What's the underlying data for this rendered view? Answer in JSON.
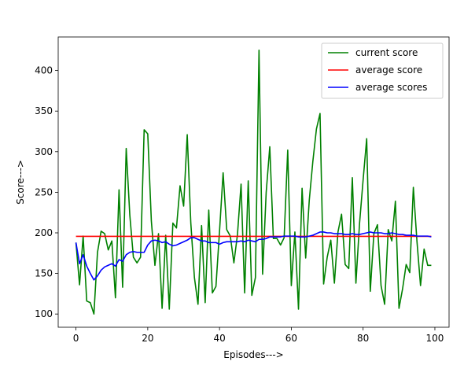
{
  "chart_data": {
    "type": "line",
    "title": "",
    "xlabel": "Episodes--->",
    "ylabel": "Score--->",
    "xlim": [
      -4.95,
      103.95
    ],
    "ylim": [
      83.7,
      441.3
    ],
    "xticks": [
      0,
      20,
      40,
      60,
      80,
      100
    ],
    "yticks": [
      100,
      150,
      200,
      250,
      300,
      350,
      400
    ],
    "grid": false,
    "legend_position": "top-right",
    "series": [
      {
        "name": "current score",
        "color": "#008000",
        "x": [
          0,
          1,
          2,
          3,
          4,
          5,
          6,
          7,
          8,
          9,
          10,
          11,
          12,
          13,
          14,
          15,
          16,
          17,
          18,
          19,
          20,
          21,
          22,
          23,
          24,
          25,
          26,
          27,
          28,
          29,
          30,
          31,
          32,
          33,
          34,
          35,
          36,
          37,
          38,
          39,
          40,
          41,
          42,
          43,
          44,
          45,
          46,
          47,
          48,
          49,
          50,
          51,
          52,
          53,
          54,
          55,
          56,
          57,
          58,
          59,
          60,
          61,
          62,
          63,
          64,
          65,
          66,
          67,
          68,
          69,
          70,
          71,
          72,
          73,
          74,
          75,
          76,
          77,
          78,
          79,
          80,
          81,
          82,
          83,
          84,
          85,
          86,
          87,
          88,
          89,
          90,
          91,
          92,
          93,
          94,
          95,
          96,
          97,
          98,
          99
        ],
        "values": [
          188,
          136,
          196,
          116,
          114,
          100,
          176,
          202,
          199,
          179,
          190,
          120,
          253,
          133,
          304,
          222,
          170,
          163,
          170,
          327,
          322,
          215,
          160,
          199,
          107,
          197,
          106,
          212,
          206,
          258,
          233,
          321,
          212,
          145,
          112,
          209,
          114,
          228,
          126,
          134,
          202,
          274,
          204,
          196,
          163,
          198,
          260,
          126,
          264,
          123,
          145,
          425,
          149,
          250,
          306,
          193,
          193,
          185,
          194,
          302,
          135,
          201,
          106,
          255,
          169,
          240,
          288,
          328,
          347,
          137,
          170,
          191,
          138,
          201,
          223,
          161,
          156,
          268,
          138,
          211,
          265,
          316,
          128,
          199,
          210,
          135,
          112,
          204,
          190,
          239,
          107,
          131,
          161,
          151,
          256,
          190,
          135,
          180,
          160,
          160
        ]
      },
      {
        "name": "average score",
        "color": "#ff0000",
        "x": [
          0,
          99
        ],
        "values": [
          195.7,
          195.7
        ]
      },
      {
        "name": "average scores",
        "color": "#0000ff",
        "x": [
          0,
          1,
          2,
          3,
          4,
          5,
          6,
          7,
          8,
          9,
          10,
          11,
          12,
          13,
          14,
          15,
          16,
          17,
          18,
          19,
          20,
          21,
          22,
          23,
          24,
          25,
          26,
          27,
          28,
          29,
          30,
          31,
          32,
          33,
          34,
          35,
          36,
          37,
          38,
          39,
          40,
          41,
          42,
          43,
          44,
          45,
          46,
          47,
          48,
          49,
          50,
          51,
          52,
          53,
          54,
          55,
          56,
          57,
          58,
          59,
          60,
          61,
          62,
          63,
          64,
          65,
          66,
          67,
          68,
          69,
          70,
          71,
          72,
          73,
          74,
          75,
          76,
          77,
          78,
          79,
          80,
          81,
          82,
          83,
          84,
          85,
          86,
          87,
          88,
          89,
          90,
          91,
          92,
          93,
          94,
          95,
          96,
          97,
          98,
          99
        ],
        "values": [
          188,
          162,
          173,
          159,
          150,
          142,
          147,
          154,
          158,
          160,
          162,
          159,
          167,
          165,
          173,
          176,
          177,
          176,
          176,
          176,
          185,
          190,
          191,
          190,
          188,
          189,
          186,
          184,
          185,
          187,
          189,
          191,
          194,
          194,
          192,
          190,
          190,
          188,
          188,
          188,
          186,
          188,
          189,
          189,
          189,
          189,
          190,
          189,
          191,
          190,
          189,
          192,
          192,
          193,
          195,
          195,
          195,
          195,
          196,
          196,
          196,
          196,
          195,
          195,
          195,
          196,
          197,
          199,
          201,
          201,
          200,
          200,
          199,
          199,
          199,
          198,
          198,
          199,
          198,
          198,
          199,
          200,
          201,
          200,
          200,
          200,
          199,
          199,
          200,
          199,
          198,
          198,
          197,
          197,
          197,
          196,
          196,
          196,
          196,
          195
        ]
      }
    ]
  }
}
